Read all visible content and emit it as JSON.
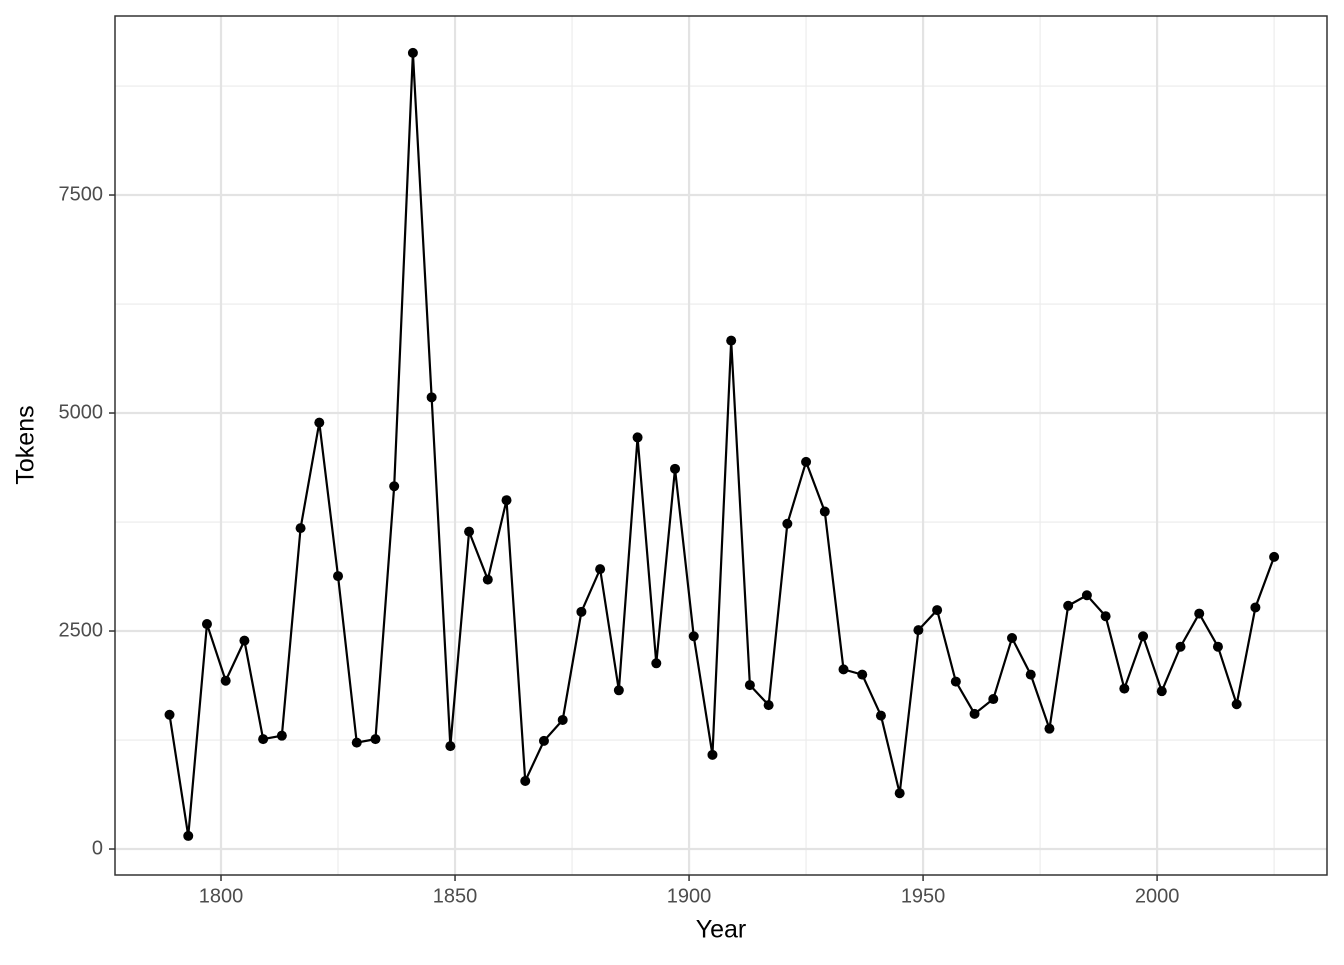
{
  "chart_data": {
    "type": "line",
    "x_label": "Year",
    "y_label": "Tokens",
    "x": [
      1789,
      1793,
      1797,
      1801,
      1805,
      1809,
      1813,
      1817,
      1821,
      1825,
      1829,
      1833,
      1837,
      1841,
      1845,
      1849,
      1853,
      1857,
      1861,
      1865,
      1869,
      1873,
      1877,
      1881,
      1885,
      1889,
      1893,
      1897,
      1901,
      1905,
      1909,
      1913,
      1917,
      1921,
      1925,
      1929,
      1933,
      1937,
      1941,
      1945,
      1949,
      1953,
      1957,
      1961,
      1965,
      1969,
      1973,
      1977,
      1981,
      1985,
      1989,
      1993,
      1997,
      2001,
      2005,
      2009,
      2013,
      2017,
      2021,
      2025
    ],
    "series": [
      {
        "color": "#000000",
        "values": [
          1540,
          150,
          2580,
          1930,
          2390,
          1260,
          1300,
          3680,
          4890,
          3130,
          1220,
          1260,
          4160,
          9130,
          5180,
          1180,
          3640,
          3090,
          4000,
          780,
          1240,
          1480,
          2720,
          3210,
          1820,
          4720,
          2130,
          4360,
          2440,
          1080,
          5830,
          1880,
          1650,
          3730,
          4440,
          3870,
          2060,
          2000,
          1530,
          640,
          2510,
          2740,
          1920,
          1550,
          1720,
          2420,
          2000,
          1380,
          2790,
          2910,
          2670,
          1840,
          2440,
          1810,
          2320,
          2700,
          2320,
          1660,
          2770,
          3350
        ]
      }
    ],
    "xlim": [
      1777.35,
      2036.3
    ],
    "xticks": [
      1800,
      1850,
      1900,
      1950,
      2000
    ],
    "ylim": [
      -298,
      9553
    ],
    "yticks": [
      0,
      2500,
      5000,
      7500
    ],
    "grid": true
  }
}
